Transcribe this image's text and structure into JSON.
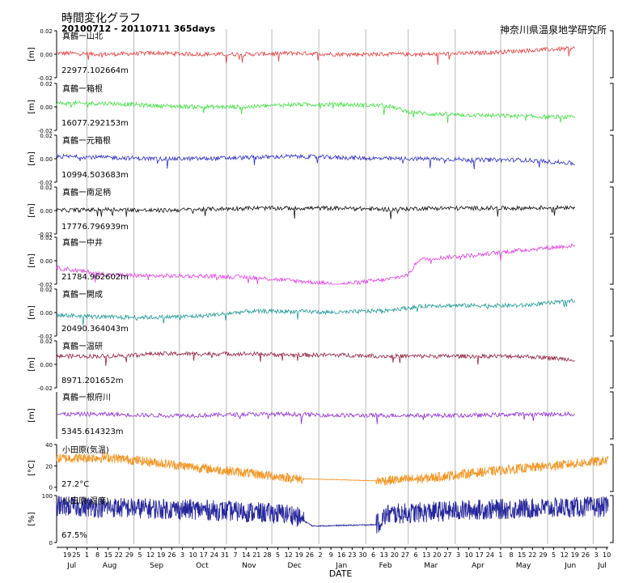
{
  "header": {
    "title": "時間変化グラフ",
    "subtitle": "20100712 - 20110711 365days",
    "organization": "神奈川県温泉地学研究所"
  },
  "chart_data": {
    "type": "line",
    "xlabel": "DATE",
    "x_range": [
      "2010-07-12",
      "2011-07-11"
    ],
    "x_ticks": [
      {
        "day": "19",
        "date": "2010-07-19"
      },
      {
        "day": "25",
        "date": "2010-07-25"
      },
      {
        "day": "1",
        "date": "2010-08-01"
      },
      {
        "day": "8",
        "date": "2010-08-08"
      },
      {
        "day": "15",
        "date": "2010-08-15"
      },
      {
        "day": "22",
        "date": "2010-08-22"
      },
      {
        "day": "29",
        "date": "2010-08-29"
      },
      {
        "day": "5",
        "date": "2010-09-05"
      },
      {
        "day": "12",
        "date": "2010-09-12"
      },
      {
        "day": "19",
        "date": "2010-09-19"
      },
      {
        "day": "26",
        "date": "2010-09-26"
      },
      {
        "day": "3",
        "date": "2010-10-03"
      },
      {
        "day": "10",
        "date": "2010-10-10"
      },
      {
        "day": "17",
        "date": "2010-10-17"
      },
      {
        "day": "24",
        "date": "2010-10-24"
      },
      {
        "day": "31",
        "date": "2010-10-31"
      },
      {
        "day": "7",
        "date": "2010-11-07"
      },
      {
        "day": "14",
        "date": "2010-11-14"
      },
      {
        "day": "21",
        "date": "2010-11-21"
      },
      {
        "day": "28",
        "date": "2010-11-28"
      },
      {
        "day": "5",
        "date": "2010-12-05"
      },
      {
        "day": "12",
        "date": "2010-12-12"
      },
      {
        "day": "19",
        "date": "2010-12-19"
      },
      {
        "day": "26",
        "date": "2010-12-26"
      },
      {
        "day": "2",
        "date": "2011-01-02"
      },
      {
        "day": "9",
        "date": "2011-01-09"
      },
      {
        "day": "16",
        "date": "2011-01-16"
      },
      {
        "day": "23",
        "date": "2011-01-23"
      },
      {
        "day": "30",
        "date": "2011-01-30"
      },
      {
        "day": "6",
        "date": "2011-02-06"
      },
      {
        "day": "13",
        "date": "2011-02-13"
      },
      {
        "day": "20",
        "date": "2011-02-20"
      },
      {
        "day": "27",
        "date": "2011-02-27"
      },
      {
        "day": "6",
        "date": "2011-03-06"
      },
      {
        "day": "13",
        "date": "2011-03-13"
      },
      {
        "day": "20",
        "date": "2011-03-20"
      },
      {
        "day": "27",
        "date": "2011-03-27"
      },
      {
        "day": "3",
        "date": "2011-04-03"
      },
      {
        "day": "10",
        "date": "2011-04-10"
      },
      {
        "day": "17",
        "date": "2011-04-17"
      },
      {
        "day": "24",
        "date": "2011-04-24"
      },
      {
        "day": "1",
        "date": "2011-05-01"
      },
      {
        "day": "8",
        "date": "2011-05-08"
      },
      {
        "day": "15",
        "date": "2011-05-15"
      },
      {
        "day": "22",
        "date": "2011-05-22"
      },
      {
        "day": "29",
        "date": "2011-05-29"
      },
      {
        "day": "5",
        "date": "2011-06-05"
      },
      {
        "day": "12",
        "date": "2011-06-12"
      },
      {
        "day": "19",
        "date": "2011-06-19"
      },
      {
        "day": "26",
        "date": "2011-06-26"
      },
      {
        "day": "3",
        "date": "2011-07-03"
      },
      {
        "day": "10",
        "date": "2011-07-10"
      }
    ],
    "month_labels": [
      {
        "label": "Jul",
        "date": "2010-07-22"
      },
      {
        "label": "Aug",
        "date": "2010-08-16"
      },
      {
        "label": "Sep",
        "date": "2010-09-16"
      },
      {
        "label": "Oct",
        "date": "2010-10-16"
      },
      {
        "label": "Nov",
        "date": "2010-11-16"
      },
      {
        "label": "Dec",
        "date": "2010-12-16"
      },
      {
        "label": "Jan",
        "date": "2011-01-16"
      },
      {
        "label": "Feb",
        "date": "2011-02-14"
      },
      {
        "label": "Mar",
        "date": "2011-03-16"
      },
      {
        "label": "Apr",
        "date": "2011-04-16"
      },
      {
        "label": "May",
        "date": "2011-05-16"
      },
      {
        "label": "Jun",
        "date": "2011-06-16"
      },
      {
        "label": "Jul",
        "date": "2011-07-07"
      }
    ],
    "month_boundaries": [
      "2010-08-01",
      "2010-09-01",
      "2010-10-01",
      "2010-11-01",
      "2010-12-01",
      "2011-01-01",
      "2011-02-01",
      "2011-03-01",
      "2011-04-01",
      "2011-05-01",
      "2011-06-01",
      "2011-07-01"
    ],
    "panels": [
      {
        "name": "真鶴ー山北",
        "value_label": "22977.102664m",
        "ylabel": "[m]",
        "ylim": [
          -0.02,
          0.02
        ],
        "ytick_labels": [
          "0.02",
          "0.00",
          "-0.02"
        ],
        "yticks": [
          0.02,
          0.0,
          -0.02
        ],
        "color": "#e04040",
        "style": "line",
        "data_end": "2011-06-19",
        "series": [
          {
            "date": "2010-07-12",
            "value": 0.001
          },
          {
            "date": "2010-08-15",
            "value": 0.0
          },
          {
            "date": "2010-09-15",
            "value": 0.001
          },
          {
            "date": "2010-10-15",
            "value": 0.0
          },
          {
            "date": "2010-11-15",
            "value": 0.0
          },
          {
            "date": "2010-12-15",
            "value": 0.001
          },
          {
            "date": "2011-01-15",
            "value": 0.0
          },
          {
            "date": "2011-02-15",
            "value": 0.0
          },
          {
            "date": "2011-03-15",
            "value": 0.0
          },
          {
            "date": "2011-04-15",
            "value": 0.001
          },
          {
            "date": "2011-05-15",
            "value": 0.003
          },
          {
            "date": "2011-06-19",
            "value": 0.005
          }
        ]
      },
      {
        "name": "真鶴ー箱根",
        "value_label": "16077.292153m",
        "ylabel": "[m]",
        "ylim": [
          -0.02,
          0.02
        ],
        "ytick_labels": [
          "0.02",
          "0.00",
          "-0.02"
        ],
        "yticks": [
          0.02,
          0.0,
          -0.02
        ],
        "color": "#40e040",
        "style": "line",
        "data_end": "2011-06-19",
        "series": [
          {
            "date": "2010-07-12",
            "value": 0.003
          },
          {
            "date": "2010-08-15",
            "value": 0.003
          },
          {
            "date": "2010-09-15",
            "value": 0.001
          },
          {
            "date": "2010-10-15",
            "value": 0.0
          },
          {
            "date": "2010-11-15",
            "value": 0.0
          },
          {
            "date": "2010-12-15",
            "value": 0.002
          },
          {
            "date": "2011-01-15",
            "value": 0.002
          },
          {
            "date": "2011-02-15",
            "value": 0.001
          },
          {
            "date": "2011-03-01",
            "value": -0.004
          },
          {
            "date": "2011-03-15",
            "value": -0.006
          },
          {
            "date": "2011-04-15",
            "value": -0.007
          },
          {
            "date": "2011-05-15",
            "value": -0.008
          },
          {
            "date": "2011-06-19",
            "value": -0.009
          }
        ]
      },
      {
        "name": "真鶴ー元箱根",
        "value_label": "10994.503683m",
        "ylabel": "[m]",
        "ylim": [
          -0.02,
          0.02
        ],
        "ytick_labels": [
          "0.02",
          "0.00",
          "-0.02"
        ],
        "yticks": [
          0.02,
          0.0,
          -0.02
        ],
        "color": "#3030c0",
        "style": "line",
        "data_end": "2011-06-19",
        "series": [
          {
            "date": "2010-07-12",
            "value": 0.002
          },
          {
            "date": "2010-08-15",
            "value": 0.001
          },
          {
            "date": "2010-09-15",
            "value": 0.0
          },
          {
            "date": "2010-10-15",
            "value": 0.0
          },
          {
            "date": "2010-11-15",
            "value": 0.001
          },
          {
            "date": "2010-12-15",
            "value": 0.002
          },
          {
            "date": "2011-01-15",
            "value": 0.001
          },
          {
            "date": "2011-02-15",
            "value": 0.0
          },
          {
            "date": "2011-03-15",
            "value": 0.0
          },
          {
            "date": "2011-04-15",
            "value": -0.001
          },
          {
            "date": "2011-05-15",
            "value": -0.001
          },
          {
            "date": "2011-06-19",
            "value": -0.004
          }
        ]
      },
      {
        "name": "真鶴ー南足柄",
        "value_label": "17776.796939m",
        "ylabel": "[m]",
        "ylim": [
          -0.02,
          0.02
        ],
        "ytick_labels": [
          "0.02",
          "0.00",
          "-0.02"
        ],
        "yticks": [
          0.02,
          0.0,
          -0.02
        ],
        "color": "#111111",
        "style": "line",
        "data_end": "2011-06-19",
        "series": [
          {
            "date": "2010-07-12",
            "value": 0.0
          },
          {
            "date": "2010-08-15",
            "value": 0.001
          },
          {
            "date": "2010-09-15",
            "value": 0.0
          },
          {
            "date": "2010-10-15",
            "value": 0.001
          },
          {
            "date": "2010-11-15",
            "value": 0.002
          },
          {
            "date": "2010-12-15",
            "value": 0.002
          },
          {
            "date": "2011-01-15",
            "value": 0.002
          },
          {
            "date": "2011-02-15",
            "value": 0.001
          },
          {
            "date": "2011-03-15",
            "value": 0.002
          },
          {
            "date": "2011-04-15",
            "value": 0.002
          },
          {
            "date": "2011-05-15",
            "value": 0.002
          },
          {
            "date": "2011-06-19",
            "value": 0.003
          }
        ]
      },
      {
        "name": "真鶴ー中井",
        "value_label": "21784.962602m",
        "ylabel": "[m]",
        "ylim": [
          -0.02,
          0.02
        ],
        "ytick_labels": [
          "0.02",
          "0.00",
          "-0.02"
        ],
        "yticks": [
          0.02,
          0.0,
          -0.02
        ],
        "color": "#e040e0",
        "style": "line",
        "data_end": "2011-06-19",
        "series": [
          {
            "date": "2010-07-12",
            "value": -0.006
          },
          {
            "date": "2010-08-15",
            "value": -0.012
          },
          {
            "date": "2010-09-15",
            "value": -0.013
          },
          {
            "date": "2010-10-15",
            "value": -0.013
          },
          {
            "date": "2010-11-15",
            "value": -0.014
          },
          {
            "date": "2010-12-15",
            "value": -0.017
          },
          {
            "date": "2011-01-15",
            "value": -0.02
          },
          {
            "date": "2011-02-15",
            "value": -0.016
          },
          {
            "date": "2011-03-01",
            "value": -0.012
          },
          {
            "date": "2011-03-08",
            "value": 0.001
          },
          {
            "date": "2011-04-15",
            "value": 0.005
          },
          {
            "date": "2011-05-15",
            "value": 0.009
          },
          {
            "date": "2011-06-19",
            "value": 0.013
          }
        ]
      },
      {
        "name": "真鶴ー開成",
        "value_label": "20490.364043m",
        "ylabel": "[m]",
        "ylim": [
          -0.02,
          0.02
        ],
        "ytick_labels": [
          "0.02",
          "0.00",
          "-0.02"
        ],
        "yticks": [
          0.02,
          0.0,
          -0.02
        ],
        "color": "#209898",
        "style": "line",
        "data_end": "2011-06-19",
        "series": [
          {
            "date": "2010-07-12",
            "value": -0.002
          },
          {
            "date": "2010-08-15",
            "value": -0.004
          },
          {
            "date": "2010-09-15",
            "value": -0.004
          },
          {
            "date": "2010-10-15",
            "value": -0.003
          },
          {
            "date": "2010-11-15",
            "value": 0.001
          },
          {
            "date": "2010-12-15",
            "value": 0.001
          },
          {
            "date": "2011-01-15",
            "value": 0.0
          },
          {
            "date": "2011-02-15",
            "value": 0.002
          },
          {
            "date": "2011-03-15",
            "value": 0.006
          },
          {
            "date": "2011-04-15",
            "value": 0.006
          },
          {
            "date": "2011-05-15",
            "value": 0.006
          },
          {
            "date": "2011-06-19",
            "value": 0.01
          }
        ]
      },
      {
        "name": "真鶴ー温研",
        "value_label": "8971.201652m",
        "ylabel": "[m]",
        "ylim": [
          -0.02,
          0.02
        ],
        "ytick_labels": [
          "0.02",
          "0.00",
          "-0.02"
        ],
        "yticks": [
          0.02,
          0.0,
          -0.02
        ],
        "color": "#902040",
        "style": "line",
        "data_end": "2011-06-19",
        "series": [
          {
            "date": "2010-07-12",
            "value": 0.007
          },
          {
            "date": "2010-08-15",
            "value": 0.007
          },
          {
            "date": "2010-09-15",
            "value": 0.009
          },
          {
            "date": "2010-10-15",
            "value": 0.009
          },
          {
            "date": "2010-11-15",
            "value": 0.009
          },
          {
            "date": "2010-12-15",
            "value": 0.008
          },
          {
            "date": "2011-01-15",
            "value": 0.008
          },
          {
            "date": "2011-02-15",
            "value": 0.007
          },
          {
            "date": "2011-03-15",
            "value": 0.007
          },
          {
            "date": "2011-04-15",
            "value": 0.007
          },
          {
            "date": "2011-05-15",
            "value": 0.007
          },
          {
            "date": "2011-06-19",
            "value": 0.004
          }
        ]
      },
      {
        "name": "真鶴ー根府川",
        "value_label": "5345.614323m",
        "ylabel": "[m]",
        "ylim": [
          -0.02,
          0.02
        ],
        "ytick_labels": [],
        "yticks": [],
        "color": "#9030d0",
        "style": "line",
        "data_end": "2011-06-19",
        "series": [
          {
            "date": "2010-07-12",
            "value": 0.001
          },
          {
            "date": "2010-08-15",
            "value": 0.001
          },
          {
            "date": "2010-09-15",
            "value": 0.0
          },
          {
            "date": "2010-10-15",
            "value": 0.0
          },
          {
            "date": "2010-11-15",
            "value": 0.001
          },
          {
            "date": "2010-12-15",
            "value": 0.001
          },
          {
            "date": "2011-01-15",
            "value": 0.0
          },
          {
            "date": "2011-02-15",
            "value": 0.0
          },
          {
            "date": "2011-03-15",
            "value": 0.0
          },
          {
            "date": "2011-04-15",
            "value": 0.0
          },
          {
            "date": "2011-05-15",
            "value": 0.001
          },
          {
            "date": "2011-06-19",
            "value": 0.001
          }
        ]
      },
      {
        "name": "小田原(気温)",
        "value_label": "27.2°C",
        "ylabel": "[°C]",
        "ylim": [
          -4,
          40
        ],
        "ytick_labels": [
          "40",
          "20",
          "0"
        ],
        "yticks": [
          40,
          20,
          0
        ],
        "color": "#f08c10",
        "style": "scatter",
        "data_end": "2011-07-11",
        "series": [
          {
            "date": "2010-07-12",
            "value": 27
          },
          {
            "date": "2010-08-15",
            "value": 28
          },
          {
            "date": "2010-09-10",
            "value": 24
          },
          {
            "date": "2010-10-10",
            "value": 19
          },
          {
            "date": "2010-11-10",
            "value": 14
          },
          {
            "date": "2010-12-18",
            "value": 8
          },
          {
            "date": "2011-01-15",
            "value": 7
          },
          {
            "date": "2011-02-08",
            "value": 6
          },
          {
            "date": "2011-03-10",
            "value": 8
          },
          {
            "date": "2011-04-10",
            "value": 13
          },
          {
            "date": "2011-05-10",
            "value": 17
          },
          {
            "date": "2011-06-10",
            "value": 21
          },
          {
            "date": "2011-07-11",
            "value": 25
          }
        ]
      },
      {
        "name": "小田原(湿度)",
        "value_label": "67.5%",
        "ylabel": "[%]",
        "ylim": [
          0,
          100
        ],
        "ytick_labels": [
          "100",
          "0"
        ],
        "yticks": [
          100,
          0
        ],
        "color": "#101090",
        "style": "scatter",
        "data_end": "2011-07-11",
        "series": [
          {
            "date": "2010-07-12",
            "value": 78
          },
          {
            "date": "2010-08-15",
            "value": 75
          },
          {
            "date": "2010-09-15",
            "value": 72
          },
          {
            "date": "2010-10-15",
            "value": 70
          },
          {
            "date": "2010-11-15",
            "value": 65
          },
          {
            "date": "2010-12-15",
            "value": 60
          },
          {
            "date": "2010-12-28",
            "value": 35
          },
          {
            "date": "2011-02-08",
            "value": 38
          },
          {
            "date": "2011-02-15",
            "value": 60
          },
          {
            "date": "2011-03-15",
            "value": 65
          },
          {
            "date": "2011-04-15",
            "value": 70
          },
          {
            "date": "2011-05-15",
            "value": 72
          },
          {
            "date": "2011-06-15",
            "value": 75
          },
          {
            "date": "2011-07-11",
            "value": 76
          }
        ]
      }
    ]
  }
}
